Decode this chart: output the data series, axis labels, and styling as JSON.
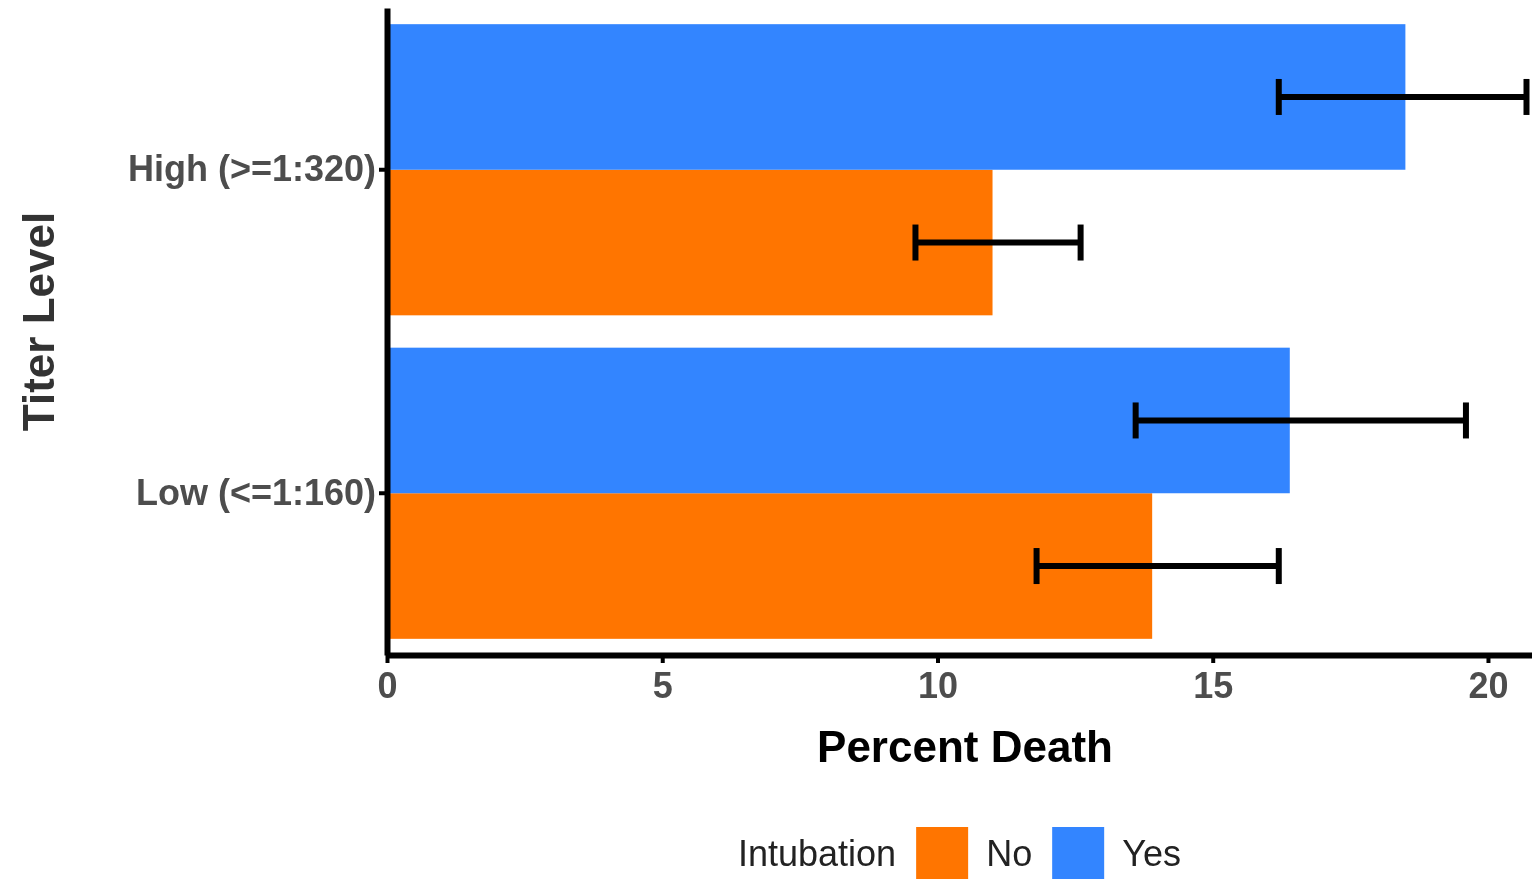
{
  "chart_data": {
    "type": "bar",
    "orientation": "horizontal",
    "xlabel": "Percent Death",
    "ylabel": "Titer Level",
    "legend_title": "Intubation",
    "legend": "bottom",
    "categories": [
      "High (>=1:320)",
      "Low (<=1:160)"
    ],
    "series": [
      {
        "name": "No",
        "color": "#ff7500",
        "values": [
          11.0,
          13.9
        ],
        "errors": [
          [
            9.6,
            12.6
          ],
          [
            11.8,
            16.2
          ]
        ]
      },
      {
        "name": "Yes",
        "color": "#3385ff",
        "values": [
          18.5,
          16.4
        ],
        "errors": [
          [
            16.2,
            20.7
          ],
          [
            13.6,
            19.6
          ]
        ]
      }
    ],
    "xlim": [
      0,
      20.8
    ],
    "xticks": [
      0,
      5,
      10,
      15,
      20
    ]
  }
}
